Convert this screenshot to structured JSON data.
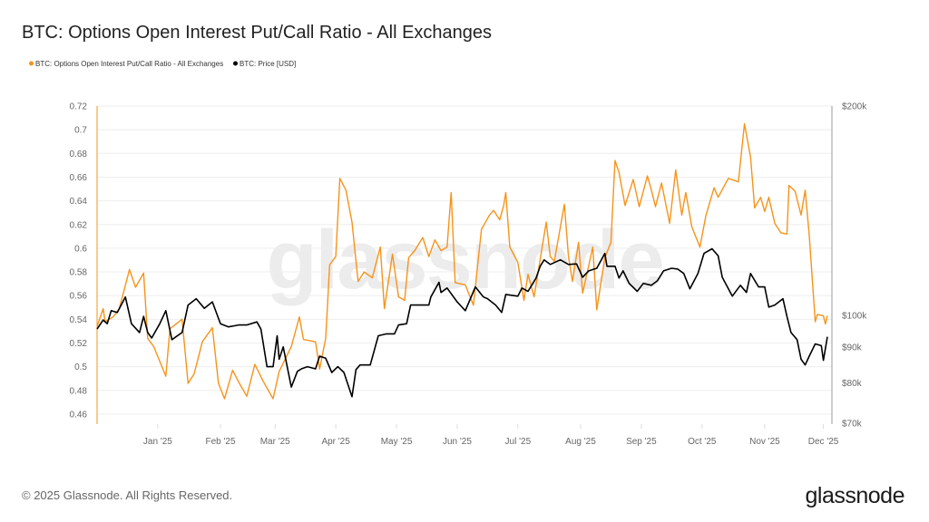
{
  "title": "BTC: Options Open Interest Put/Call Ratio - All Exchanges",
  "footer": {
    "copyright": "© 2025 Glassnode. All Rights Reserved.",
    "logo": "glassnode",
    "watermark": "glassnode"
  },
  "colors": {
    "ratio": "#f7931a",
    "price": "#000000",
    "grid": "#eeeeee"
  },
  "chart_data": {
    "type": "line",
    "title": "BTC: Options Open Interest Put/Call Ratio - All Exchanges",
    "x_origin": "2024-12-02",
    "x_unit": "days since x_origin",
    "x_ticks": [
      "Jan '25",
      "Feb '25",
      "Mar '25",
      "Apr '25",
      "May '25",
      "Jun '25",
      "Jul '25",
      "Aug '25",
      "Sep '25",
      "Oct '25",
      "Nov '25",
      "Dec '25"
    ],
    "y_left": {
      "ticks": [
        "0.72",
        "0.7",
        "0.68",
        "0.66",
        "0.64",
        "0.62",
        "0.6",
        "0.58",
        "0.56",
        "0.54",
        "0.52",
        "0.5",
        "0.48",
        "0.46"
      ],
      "range": [
        0.45,
        0.72
      ]
    },
    "y_right": {
      "ticks": [
        "$200k",
        "$100k",
        "$90k",
        "$80k",
        "$70k"
      ],
      "tick_values": [
        200,
        100,
        90,
        80,
        70
      ],
      "range": [
        70,
        200
      ],
      "scale": "log",
      "unit": "thousand USD"
    },
    "grid": true,
    "legend_position": "top-left",
    "series": [
      {
        "name": "BTC: Options Open Interest Put/Call Ratio - All Exchanges",
        "axis": "left",
        "color": "#f7931a",
        "points": [
          [
            0,
            0.534
          ],
          [
            3,
            0.549
          ],
          [
            4,
            0.538
          ],
          [
            8,
            0.542
          ],
          [
            11,
            0.549
          ],
          [
            16,
            0.582
          ],
          [
            19,
            0.567
          ],
          [
            23,
            0.579
          ],
          [
            25,
            0.524
          ],
          [
            28,
            0.517
          ],
          [
            34,
            0.492
          ],
          [
            36,
            0.532
          ],
          [
            42,
            0.54
          ],
          [
            45,
            0.486
          ],
          [
            48,
            0.494
          ],
          [
            52,
            0.521
          ],
          [
            57,
            0.533
          ],
          [
            60,
            0.486
          ],
          [
            63,
            0.473
          ],
          [
            67,
            0.497
          ],
          [
            70,
            0.487
          ],
          [
            74,
            0.475
          ],
          [
            78,
            0.502
          ],
          [
            82,
            0.488
          ],
          [
            87,
            0.473
          ],
          [
            90,
            0.496
          ],
          [
            96,
            0.517
          ],
          [
            100,
            0.542
          ],
          [
            102,
            0.523
          ],
          [
            108,
            0.521
          ],
          [
            110,
            0.498
          ],
          [
            113,
            0.524
          ],
          [
            115,
            0.586
          ],
          [
            118,
            0.593
          ],
          [
            120,
            0.659
          ],
          [
            123,
            0.649
          ],
          [
            126,
            0.622
          ],
          [
            129,
            0.572
          ],
          [
            132,
            0.58
          ],
          [
            136,
            0.575
          ],
          [
            140,
            0.601
          ],
          [
            142,
            0.549
          ],
          [
            146,
            0.595
          ],
          [
            149,
            0.559
          ],
          [
            152,
            0.556
          ],
          [
            154,
            0.592
          ],
          [
            157,
            0.598
          ],
          [
            161,
            0.609
          ],
          [
            164,
            0.593
          ],
          [
            167,
            0.607
          ],
          [
            170,
            0.598
          ],
          [
            173,
            0.601
          ],
          [
            175,
            0.647
          ],
          [
            177,
            0.571
          ],
          [
            182,
            0.569
          ],
          [
            186,
            0.552
          ],
          [
            190,
            0.616
          ],
          [
            194,
            0.628
          ],
          [
            196,
            0.632
          ],
          [
            199,
            0.624
          ],
          [
            201,
            0.636
          ],
          [
            202,
            0.647
          ],
          [
            204,
            0.601
          ],
          [
            208,
            0.588
          ],
          [
            211,
            0.556
          ],
          [
            213,
            0.578
          ],
          [
            216,
            0.559
          ],
          [
            222,
            0.622
          ],
          [
            224,
            0.593
          ],
          [
            226,
            0.589
          ],
          [
            231,
            0.637
          ],
          [
            233,
            0.593
          ],
          [
            235,
            0.572
          ],
          [
            238,
            0.605
          ],
          [
            240,
            0.562
          ],
          [
            245,
            0.601
          ],
          [
            247,
            0.548
          ],
          [
            251,
            0.592
          ],
          [
            254,
            0.605
          ],
          [
            256,
            0.674
          ],
          [
            258,
            0.664
          ],
          [
            261,
            0.636
          ],
          [
            265,
            0.658
          ],
          [
            268,
            0.635
          ],
          [
            272,
            0.661
          ],
          [
            274,
            0.649
          ],
          [
            276,
            0.635
          ],
          [
            279,
            0.655
          ],
          [
            283,
            0.621
          ],
          [
            286,
            0.666
          ],
          [
            289,
            0.628
          ],
          [
            291,
            0.647
          ],
          [
            294,
            0.618
          ],
          [
            298,
            0.601
          ],
          [
            301,
            0.628
          ],
          [
            305,
            0.651
          ],
          [
            307,
            0.643
          ],
          [
            312,
            0.659
          ],
          [
            317,
            0.656
          ],
          [
            320,
            0.705
          ],
          [
            323,
            0.677
          ],
          [
            325,
            0.634
          ],
          [
            328,
            0.643
          ],
          [
            330,
            0.631
          ],
          [
            332,
            0.643
          ],
          [
            335,
            0.621
          ],
          [
            338,
            0.613
          ],
          [
            341,
            0.612
          ],
          [
            342,
            0.653
          ],
          [
            345,
            0.648
          ],
          [
            348,
            0.628
          ],
          [
            350,
            0.649
          ],
          [
            352,
            0.611
          ],
          [
            355,
            0.538
          ],
          [
            356,
            0.544
          ],
          [
            359,
            0.543
          ],
          [
            360,
            0.536
          ],
          [
            361,
            0.543
          ]
        ]
      },
      {
        "name": "BTC: Price [USD]",
        "axis": "right",
        "color": "#000000",
        "points": [
          [
            0,
            95.6
          ],
          [
            3,
            98.5
          ],
          [
            5,
            97.3
          ],
          [
            7,
            101.6
          ],
          [
            10,
            101
          ],
          [
            14,
            106.3
          ],
          [
            17,
            97.3
          ],
          [
            21,
            94.5
          ],
          [
            23,
            99.7
          ],
          [
            25,
            94.5
          ],
          [
            27,
            92.8
          ],
          [
            31,
            97.3
          ],
          [
            34,
            101.6
          ],
          [
            37,
            92.3
          ],
          [
            42,
            94.5
          ],
          [
            45,
            103.5
          ],
          [
            49,
            105.7
          ],
          [
            53,
            102.4
          ],
          [
            57,
            104.6
          ],
          [
            61,
            97.3
          ],
          [
            65,
            96.3
          ],
          [
            70,
            96.9
          ],
          [
            74,
            96.9
          ],
          [
            79,
            97.9
          ],
          [
            81,
            95.6
          ],
          [
            84,
            84.4
          ],
          [
            87,
            84.4
          ],
          [
            89,
            93.5
          ],
          [
            90,
            86.5
          ],
          [
            92,
            90.1
          ],
          [
            96,
            78.9
          ],
          [
            99,
            83.1
          ],
          [
            101,
            83.8
          ],
          [
            104,
            84.4
          ],
          [
            108,
            83.8
          ],
          [
            110,
            87.4
          ],
          [
            113,
            86.8
          ],
          [
            116,
            82.8
          ],
          [
            119,
            84.4
          ],
          [
            122,
            82.8
          ],
          [
            126,
            76.4
          ],
          [
            128,
            83.6
          ],
          [
            130,
            84.9
          ],
          [
            135,
            84.9
          ],
          [
            139,
            93.5
          ],
          [
            143,
            94.1
          ],
          [
            147,
            94.1
          ],
          [
            149,
            96.9
          ],
          [
            153,
            97.3
          ],
          [
            155,
            103.5
          ],
          [
            159,
            103.5
          ],
          [
            164,
            103.5
          ],
          [
            165,
            106.3
          ],
          [
            169,
            111.6
          ],
          [
            170,
            107.9
          ],
          [
            173,
            109.5
          ],
          [
            178,
            104.6
          ],
          [
            182,
            101.6
          ],
          [
            187,
            109.9
          ],
          [
            191,
            106.3
          ],
          [
            193,
            105.7
          ],
          [
            197,
            103.5
          ],
          [
            200,
            101
          ],
          [
            202,
            107.2
          ],
          [
            208,
            106.6
          ],
          [
            210,
            109.5
          ],
          [
            213,
            108.3
          ],
          [
            217,
            113.2
          ],
          [
            219,
            117.7
          ],
          [
            221,
            120.2
          ],
          [
            224,
            118.4
          ],
          [
            229,
            120.2
          ],
          [
            233,
            118.4
          ],
          [
            237,
            118.6
          ],
          [
            240,
            113.5
          ],
          [
            243,
            115.9
          ],
          [
            247,
            116.9
          ],
          [
            251,
            122.8
          ],
          [
            252,
            117.7
          ],
          [
            256,
            117.7
          ],
          [
            258,
            113.2
          ],
          [
            260,
            115.9
          ],
          [
            263,
            111.2
          ],
          [
            267,
            108.3
          ],
          [
            270,
            111.2
          ],
          [
            274,
            110.5
          ],
          [
            277,
            112.2
          ],
          [
            280,
            115.9
          ],
          [
            284,
            116.9
          ],
          [
            287,
            116.6
          ],
          [
            290,
            114.9
          ],
          [
            293,
            109.2
          ],
          [
            297,
            114.9
          ],
          [
            300,
            122.8
          ],
          [
            304,
            124.7
          ],
          [
            307,
            121.8
          ],
          [
            309,
            113.5
          ],
          [
            314,
            106.6
          ],
          [
            318,
            110.5
          ],
          [
            321,
            107.9
          ],
          [
            323,
            114.9
          ],
          [
            327,
            109.9
          ],
          [
            330,
            109.9
          ],
          [
            332,
            102.8
          ],
          [
            335,
            103.5
          ],
          [
            339,
            105.7
          ],
          [
            341,
            99.7
          ],
          [
            343,
            94.5
          ],
          [
            346,
            92.3
          ],
          [
            348,
            86.5
          ],
          [
            350,
            84.9
          ],
          [
            352,
            87.4
          ],
          [
            355,
            91
          ],
          [
            358,
            90.5
          ],
          [
            359,
            86.2
          ],
          [
            361,
            93.2
          ]
        ]
      }
    ]
  }
}
